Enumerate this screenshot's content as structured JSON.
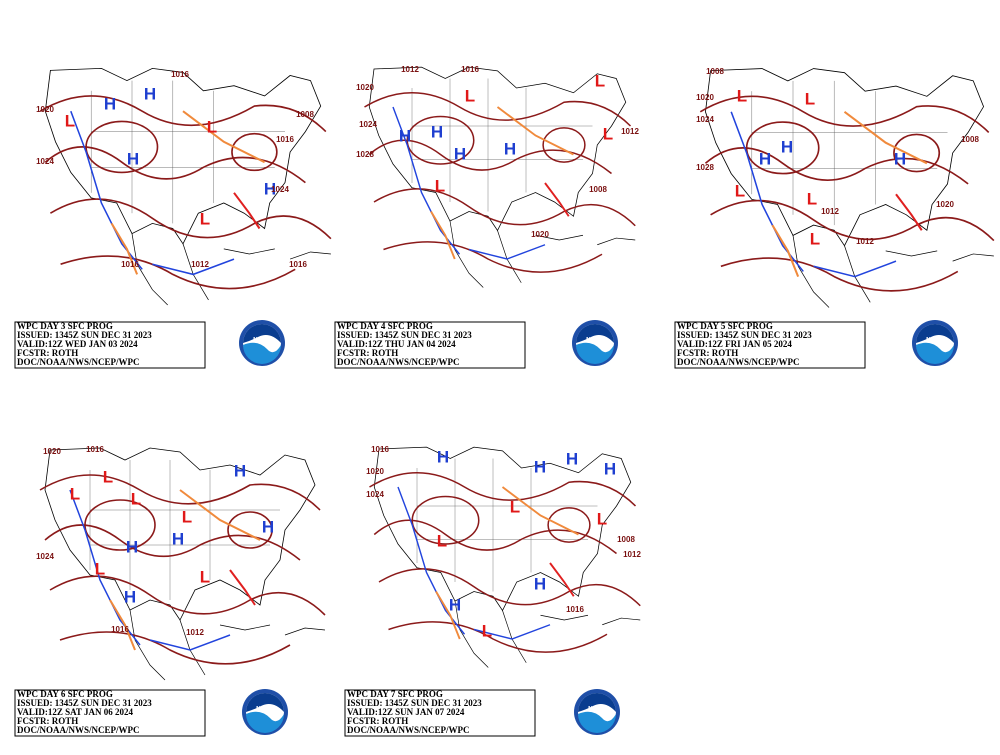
{
  "panels": [
    {
      "caption": [
        "WPC DAY 3 SFC PROG",
        "ISSUED: 1345Z SUN DEC 31 2023",
        "VALID:12Z WED JAN 03 2024",
        "FCSTR: ROTH",
        "DOC/NOAA/NWS/NCEP/WPC"
      ],
      "logo": "NOAA",
      "labels": [
        "H",
        "H",
        "L",
        "H",
        "L",
        "H",
        "L",
        "1020",
        "1024",
        "1016",
        "1008",
        "1016",
        "1024",
        "1016",
        "1012",
        "1016"
      ]
    },
    {
      "caption": [
        "WPC DAY 4 SFC PROG",
        "ISSUED: 1345Z SUN DEC 31 2023",
        "VALID:12Z THU JAN 04 2024",
        "FCSTR: ROTH",
        "DOC/NOAA/NWS/NCEP/WPC"
      ],
      "logo": "NOAA",
      "labels": [
        "1012",
        "1020",
        "1024",
        "1028",
        "H",
        "H",
        "H",
        "H",
        "L",
        "L",
        "L",
        "L",
        "1012",
        "1020",
        "1008",
        "1016"
      ]
    },
    {
      "caption": [
        "WPC DAY 5 SFC PROG",
        "ISSUED: 1345Z SUN DEC 31 2023",
        "VALID:12Z FRI JAN 05 2024",
        "FCSTR: ROTH",
        "DOC/NOAA/NWS/NCEP/WPC"
      ],
      "logo": "NOAA",
      "labels": [
        "1008",
        "1020",
        "1024",
        "1028",
        "L",
        "L",
        "H",
        "H",
        "L",
        "L",
        "L",
        "H",
        "1012",
        "1012",
        "1008",
        "1020"
      ]
    },
    {
      "caption": [
        "WPC DAY 6 SFC PROG",
        "ISSUED: 1345Z SUN DEC 31 2023",
        "VALID:12Z SAT JAN 06 2024",
        "FCSTR: ROTH",
        "DOC/NOAA/NWS/NCEP/WPC"
      ],
      "logo": "NOAA",
      "labels": [
        "1020",
        "1016",
        "L",
        "L",
        "L",
        "L",
        "H",
        "H",
        "H",
        "H",
        "L",
        "H",
        "L",
        "1024",
        "1016",
        "1012"
      ]
    },
    {
      "caption": [
        "WPC DAY 7 SFC PROG",
        "ISSUED: 1345Z SUN DEC 31 2023",
        "VALID:12Z SUN JAN 07 2024",
        "FCSTR: ROTH",
        "DOC/NOAA/NWS/NCEP/WPC"
      ],
      "logo": "NOAA",
      "labels": [
        "1016",
        "1020",
        "1024",
        "H",
        "H",
        "H",
        "H",
        "L",
        "L",
        "L",
        "H",
        "H",
        "L",
        "1008",
        "1012",
        "1016"
      ]
    }
  ]
}
